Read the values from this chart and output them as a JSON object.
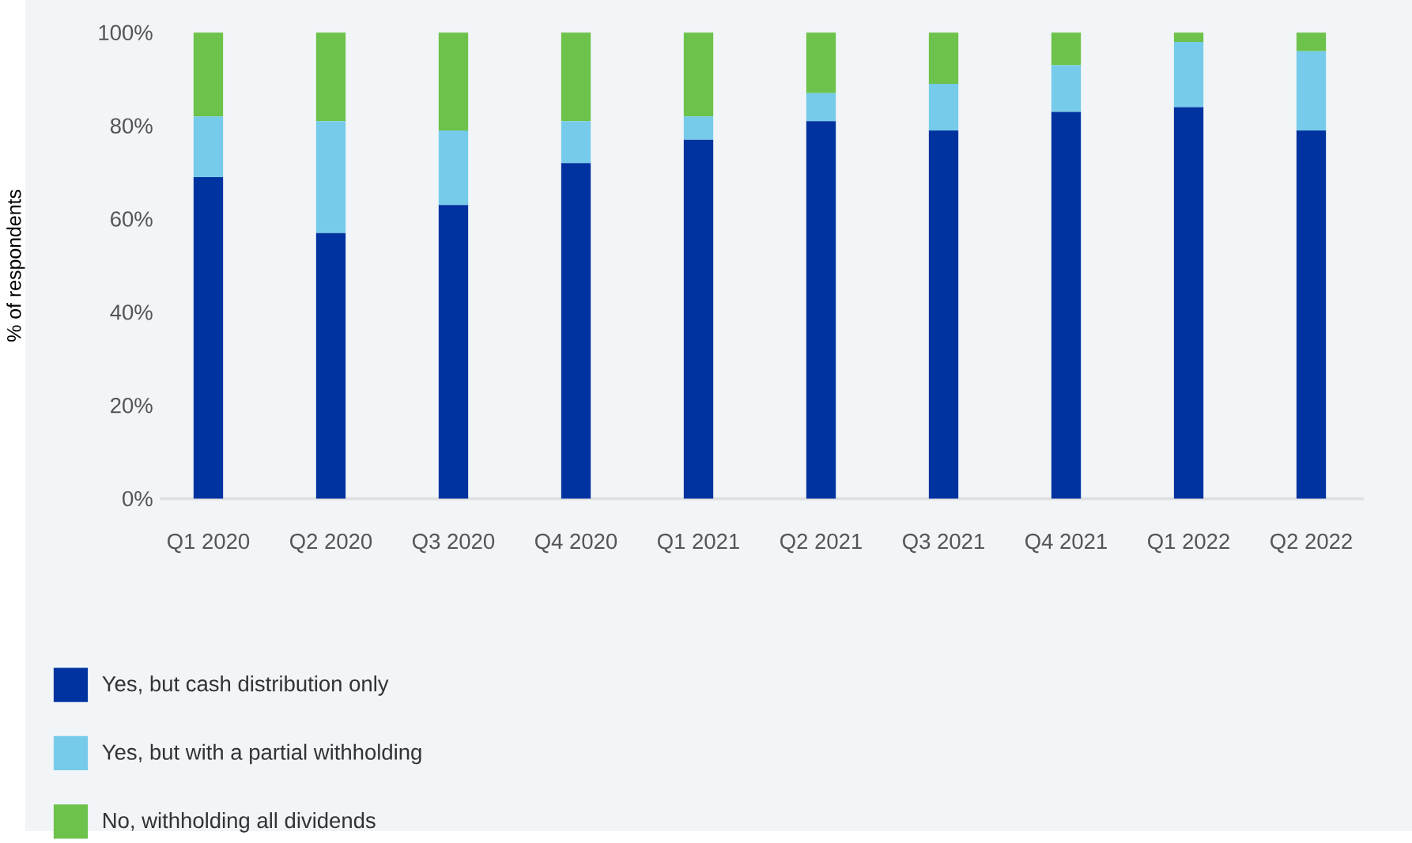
{
  "chart_data": {
    "type": "bar",
    "stacked": true,
    "ylabel": "% of respondents",
    "categories": [
      "Q1 2020",
      "Q2 2020",
      "Q3 2020",
      "Q4 2020",
      "Q1 2021",
      "Q2 2021",
      "Q3 2021",
      "Q4 2021",
      "Q1 2022",
      "Q2 2022"
    ],
    "series": [
      {
        "name": "Yes, but cash distribution only",
        "color": "#0033a0",
        "values": [
          69,
          57,
          63,
          72,
          77,
          81,
          79,
          83,
          84,
          79
        ]
      },
      {
        "name": "Yes, but with a partial withholding",
        "color": "#76cbea",
        "values": [
          13,
          24,
          16,
          9,
          5,
          6,
          10,
          10,
          14,
          17
        ]
      },
      {
        "name": "No, withholding all dividends",
        "color": "#6cc24a",
        "values": [
          18,
          19,
          21,
          19,
          18,
          13,
          11,
          7,
          2,
          4
        ]
      }
    ],
    "ylim": [
      0,
      100
    ],
    "yticks": [
      {
        "value": 0,
        "label": "0%"
      },
      {
        "value": 20,
        "label": "20%"
      },
      {
        "value": 40,
        "label": "40%"
      },
      {
        "value": 60,
        "label": "60%"
      },
      {
        "value": 80,
        "label": "80%"
      },
      {
        "value": 100,
        "label": "100%"
      }
    ],
    "legend": "bottom left"
  }
}
